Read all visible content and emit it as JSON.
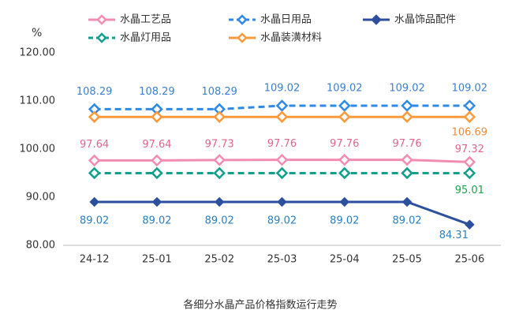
{
  "chart_data": {
    "type": "line",
    "title": "各细分水晶产品价格指数运行走势",
    "y_unit": "%",
    "categories": [
      "24-12",
      "25-01",
      "25-02",
      "25-03",
      "25-04",
      "25-05",
      "25-06"
    ],
    "series": [
      {
        "name": "水晶工艺品",
        "color": "#f28cb1",
        "label_color": "#e2668c",
        "dashed": false,
        "marker": "hollow",
        "values": [
          97.64,
          97.64,
          97.73,
          97.76,
          97.76,
          97.76,
          97.32
        ]
      },
      {
        "name": "水晶日用品",
        "color": "#2f8ae6",
        "label_color": "#3b7fd0",
        "dashed": true,
        "marker": "hollow",
        "values": [
          108.29,
          108.29,
          108.29,
          109.02,
          109.02,
          109.02,
          109.02
        ]
      },
      {
        "name": "水晶饰品配件",
        "color": "#2c4f9e",
        "label_color": "#2a7fbf",
        "dashed": false,
        "marker": "filled",
        "values": [
          89.02,
          89.02,
          89.02,
          89.02,
          89.02,
          89.02,
          84.31
        ]
      },
      {
        "name": "水晶灯用品",
        "color": "#13a08a",
        "label_color": "#1aa64a",
        "dashed": true,
        "marker": "hollow",
        "values": [
          95.01,
          95.01,
          95.01,
          95.01,
          95.01,
          95.01,
          95.01
        ],
        "value_labels": [
          null,
          null,
          null,
          null,
          null,
          null,
          "95.01"
        ]
      },
      {
        "name": "水晶装潢材料",
        "color": "#f99b3c",
        "label_color": "#f08a3a",
        "dashed": false,
        "marker": "hollow",
        "values": [
          106.69,
          106.69,
          106.69,
          106.69,
          106.69,
          106.69,
          106.69
        ],
        "value_labels": [
          null,
          null,
          null,
          null,
          null,
          null,
          "106.69"
        ]
      }
    ],
    "ylim": [
      80,
      120
    ],
    "yticks": [
      {
        "value": 80,
        "label": "80.00"
      },
      {
        "value": 90,
        "label": "90.00"
      },
      {
        "value": 100,
        "label": "100.00"
      },
      {
        "value": 110,
        "label": "110.00"
      },
      {
        "value": 120,
        "label": "120.00"
      }
    ],
    "grid": false
  }
}
